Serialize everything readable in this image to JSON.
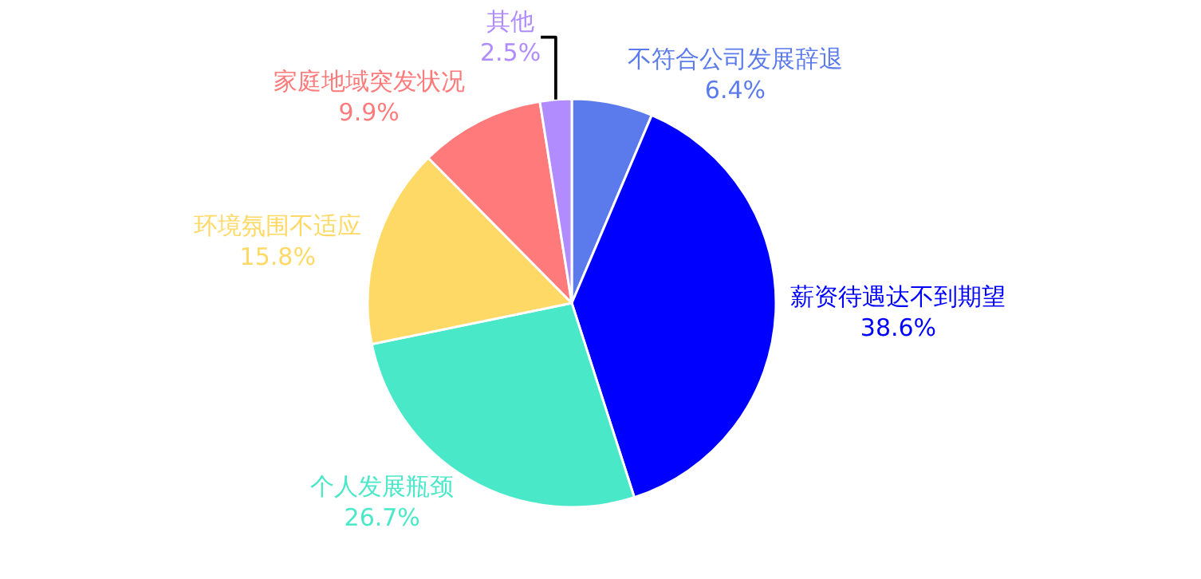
{
  "chart_data": {
    "type": "pie",
    "categories": [
      "不符合公司发展辞退",
      "薪资待遇达不到期望",
      "个人发展瓶颈",
      "环境氛围不适应",
      "家庭地域突发状况",
      "其他"
    ],
    "values": [
      6.4,
      38.6,
      26.7,
      15.8,
      9.9,
      2.5
    ],
    "colors": [
      "#5b7bec",
      "#0000ff",
      "#48e8c8",
      "#ffd966",
      "#ff7a7a",
      "#b08cff"
    ],
    "value_labels": [
      "6.4%",
      "38.6%",
      "26.7%",
      "15.8%",
      "9.9%",
      "2.5%"
    ],
    "legend": false
  }
}
